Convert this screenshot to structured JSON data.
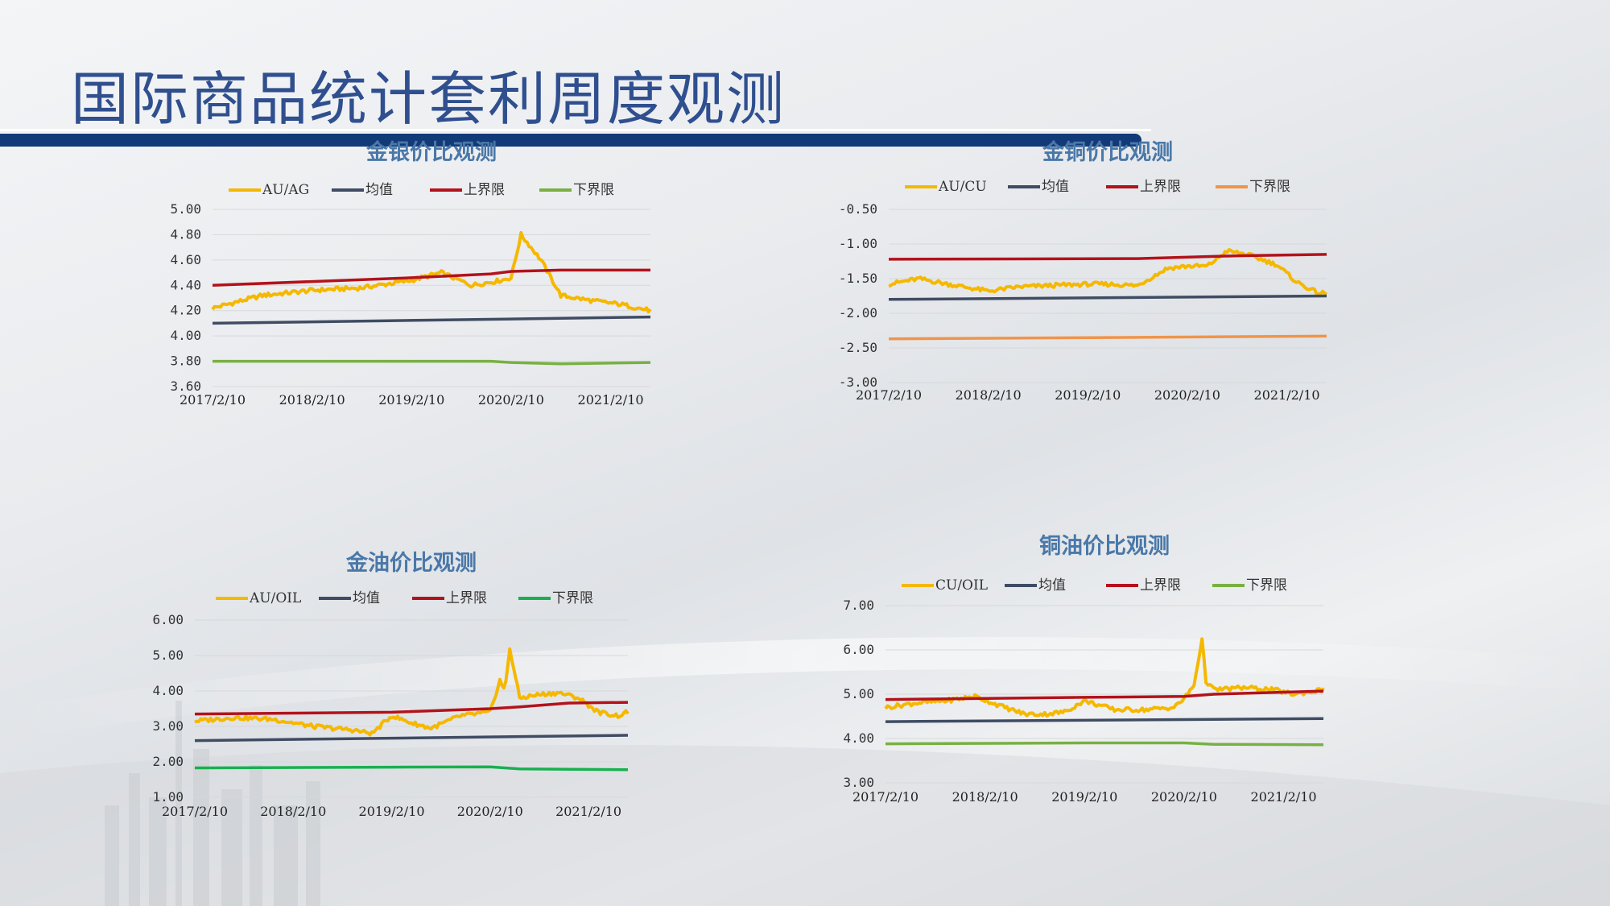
{
  "page": {
    "title": "国际商品统计套利周度观测"
  },
  "colors": {
    "ratio": "#f5b800",
    "mean": "#3f4c63",
    "upper": "#b3121b",
    "lower_green": "#78b043",
    "lower_orange": "#f0944a",
    "lower_bright_green": "#18b050",
    "title_bar": "#123a78"
  },
  "chart_data": [
    {
      "id": "au_ag",
      "type": "line",
      "title": "金银价比观测",
      "x_ticks": [
        "2017/2/10",
        "2018/2/10",
        "2019/2/10",
        "2020/2/10",
        "2021/2/10"
      ],
      "ylim": [
        3.6,
        5.0
      ],
      "y_ticks": [
        "5.00",
        "4.80",
        "4.60",
        "4.40",
        "4.20",
        "4.00",
        "3.80",
        "3.60"
      ],
      "grid": true,
      "legend_position": "top",
      "series": [
        {
          "name": "AU/AG",
          "color_key": "ratio",
          "x": [
            0,
            0.5,
            1,
            1.5,
            2,
            2.3,
            2.6,
            2.9,
            3.0,
            3.1,
            3.3,
            3.5,
            3.8,
            4.1,
            4.4
          ],
          "values": [
            4.22,
            4.32,
            4.36,
            4.38,
            4.44,
            4.5,
            4.4,
            4.44,
            4.46,
            4.8,
            4.6,
            4.32,
            4.28,
            4.25,
            4.2
          ]
        },
        {
          "name": "均值",
          "color_key": "mean",
          "x": [
            0,
            4.4
          ],
          "values": [
            4.1,
            4.15
          ]
        },
        {
          "name": "上界限",
          "color_key": "upper",
          "x": [
            0,
            1,
            2,
            2.8,
            3.0,
            3.5,
            4.4
          ],
          "values": [
            4.4,
            4.43,
            4.46,
            4.49,
            4.51,
            4.52,
            4.52
          ]
        },
        {
          "name": "下界限",
          "color_key": "lower_green",
          "x": [
            0,
            2,
            2.8,
            3.0,
            3.5,
            4.4
          ],
          "values": [
            3.8,
            3.8,
            3.8,
            3.79,
            3.78,
            3.79
          ]
        }
      ]
    },
    {
      "id": "au_cu",
      "type": "line",
      "title": "金铜价比观测",
      "x_ticks": [
        "2017/2/10",
        "2018/2/10",
        "2019/2/10",
        "2020/2/10",
        "2021/2/10"
      ],
      "ylim": [
        -3.0,
        -0.5
      ],
      "y_ticks": [
        "-0.50",
        "-1.00",
        "-1.50",
        "-2.00",
        "-2.50",
        "-3.00"
      ],
      "grid": true,
      "legend_position": "top",
      "series": [
        {
          "name": "AU/CU",
          "color_key": "ratio",
          "x": [
            0,
            0.3,
            0.6,
            1.0,
            1.3,
            1.6,
            2.0,
            2.2,
            2.5,
            2.8,
            3.0,
            3.2,
            3.4,
            3.6,
            3.9,
            4.1,
            4.3,
            4.4
          ],
          "values": [
            -1.58,
            -1.5,
            -1.58,
            -1.68,
            -1.62,
            -1.6,
            -1.58,
            -1.58,
            -1.6,
            -1.35,
            -1.32,
            -1.32,
            -1.1,
            -1.15,
            -1.3,
            -1.55,
            -1.7,
            -1.72
          ]
        },
        {
          "name": "均值",
          "color_key": "mean",
          "x": [
            0,
            4.4
          ],
          "values": [
            -1.8,
            -1.75
          ]
        },
        {
          "name": "上界限",
          "color_key": "upper",
          "x": [
            0,
            2.5,
            3.5,
            4.4
          ],
          "values": [
            -1.22,
            -1.21,
            -1.17,
            -1.15
          ]
        },
        {
          "name": "下界限",
          "color_key": "lower_orange",
          "x": [
            0,
            4.4
          ],
          "values": [
            -2.37,
            -2.33
          ]
        }
      ]
    },
    {
      "id": "au_oil",
      "type": "line",
      "title": "金油价比观测",
      "x_ticks": [
        "2017/2/10",
        "2018/2/10",
        "2019/2/10",
        "2020/2/10",
        "2021/2/10"
      ],
      "ylim": [
        1.0,
        6.0
      ],
      "y_ticks": [
        "6.00",
        "5.00",
        "4.00",
        "3.00",
        "2.00",
        "1.00"
      ],
      "grid": true,
      "legend_position": "top",
      "series": [
        {
          "name": "AU/OIL",
          "color_key": "ratio",
          "x": [
            0,
            0.4,
            0.8,
            1.2,
            1.6,
            1.8,
            2.0,
            2.2,
            2.4,
            2.7,
            3.0,
            3.1,
            3.15,
            3.2,
            3.3,
            3.5,
            3.7,
            3.9,
            4.1,
            4.3,
            4.4
          ],
          "values": [
            3.15,
            3.25,
            3.2,
            3.0,
            2.9,
            2.8,
            3.3,
            3.1,
            2.95,
            3.3,
            3.4,
            4.3,
            4.0,
            5.2,
            3.8,
            3.9,
            3.95,
            3.8,
            3.4,
            3.3,
            3.4
          ]
        },
        {
          "name": "均值",
          "color_key": "mean",
          "x": [
            0,
            4.4
          ],
          "values": [
            2.6,
            2.75
          ]
        },
        {
          "name": "上界限",
          "color_key": "upper",
          "x": [
            0,
            2.0,
            3.0,
            3.3,
            3.8,
            4.4
          ],
          "values": [
            3.35,
            3.4,
            3.5,
            3.55,
            3.66,
            3.68
          ]
        },
        {
          "name": "下界限",
          "color_key": "lower_bright_green",
          "x": [
            0,
            2.0,
            3.0,
            3.3,
            4.4
          ],
          "values": [
            1.83,
            1.85,
            1.86,
            1.8,
            1.78
          ]
        }
      ]
    },
    {
      "id": "cu_oil",
      "type": "line",
      "title": "铜油价比观测",
      "x_ticks": [
        "2017/2/10",
        "2018/2/10",
        "2019/2/10",
        "2020/2/10",
        "2021/2/10"
      ],
      "ylim": [
        3.0,
        7.0
      ],
      "y_ticks": [
        "7.00",
        "6.00",
        "5.00",
        "4.00",
        "3.00"
      ],
      "grid": true,
      "legend_position": "top",
      "series": [
        {
          "name": "CU/OIL",
          "color_key": "ratio",
          "x": [
            0,
            0.3,
            0.6,
            0.9,
            1.2,
            1.4,
            1.6,
            1.8,
            2.0,
            2.3,
            2.6,
            2.9,
            3.0,
            3.1,
            3.18,
            3.22,
            3.3,
            3.6,
            3.9,
            4.1,
            4.4
          ],
          "values": [
            4.7,
            4.8,
            4.85,
            4.95,
            4.7,
            4.55,
            4.55,
            4.6,
            4.85,
            4.65,
            4.65,
            4.7,
            4.9,
            5.2,
            6.25,
            5.3,
            5.1,
            5.15,
            5.1,
            5.0,
            5.1
          ]
        },
        {
          "name": "均值",
          "color_key": "mean",
          "x": [
            0,
            4.4
          ],
          "values": [
            4.38,
            4.45
          ]
        },
        {
          "name": "上界限",
          "color_key": "upper",
          "x": [
            0,
            2.0,
            3.0,
            3.3,
            4.4
          ],
          "values": [
            4.88,
            4.93,
            4.95,
            5.0,
            5.07
          ]
        },
        {
          "name": "下界限",
          "color_key": "lower_green",
          "x": [
            0,
            2.0,
            3.0,
            3.3,
            4.4
          ],
          "values": [
            3.88,
            3.9,
            3.9,
            3.87,
            3.86
          ]
        }
      ]
    }
  ]
}
